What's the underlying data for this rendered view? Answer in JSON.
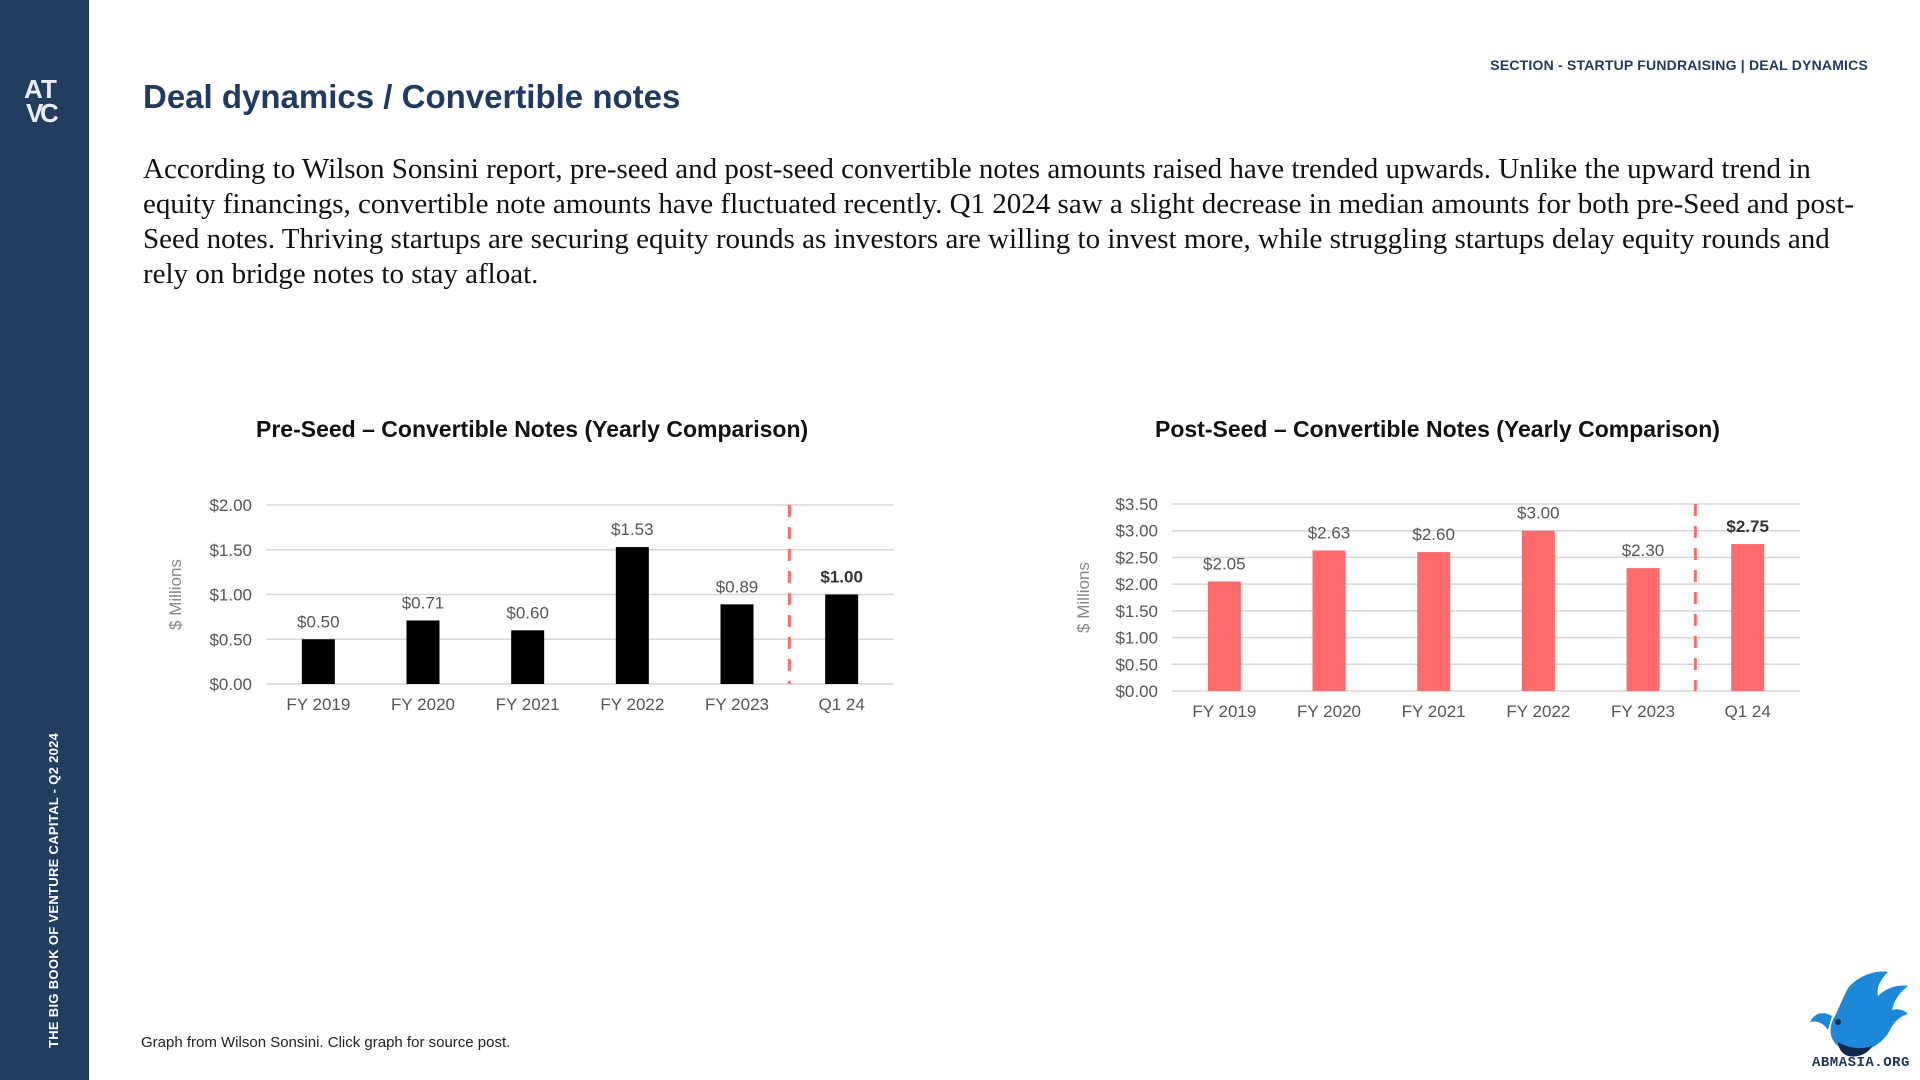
{
  "sidebar": {
    "logo_letters": [
      "A",
      "T",
      "V",
      "C"
    ],
    "vertical_text": "THE BIG BOOK OF VENTURE CAPITAL - Q2 2024"
  },
  "header": {
    "section_label": "SECTION - STARTUP FUNDRAISING | DEAL DYNAMICS",
    "title": "Deal dynamics / Convertible notes"
  },
  "intro": "According to Wilson Sonsini report, pre-seed and post-seed convertible notes amounts raised have trended upwards. Unlike the upward trend in equity financings, convertible note amounts have fluctuated recently. Q1 2024 saw a slight decrease in median amounts for both pre-Seed and post-Seed notes. Thriving startups are securing equity rounds as investors are willing to invest more, while struggling startups delay equity rounds and rely on bridge notes to stay afloat.",
  "footnote": "Graph from Wilson Sonsini. Click graph for source post.",
  "watermark": "ABMASIA.ORG",
  "colors": {
    "sidebar": "#233d60",
    "title": "#1f3b64",
    "preseed_bar": "#000000",
    "postseed_bar": "#ff6b6b",
    "divider": "#ff6b6b"
  },
  "chart_data": [
    {
      "type": "bar",
      "title": "Pre-Seed – Convertible Notes (Yearly Comparison)",
      "ylabel": "$ Millions",
      "categories": [
        "FY 2019",
        "FY  2020",
        "FY 2021",
        "FY 2022",
        "FY 2023",
        "Q1 24"
      ],
      "values": [
        0.5,
        0.71,
        0.6,
        1.53,
        0.89,
        1.0
      ],
      "value_labels": [
        "$0.50",
        "$0.71",
        "$0.60",
        "$1.53",
        "$0.89",
        "$1.00"
      ],
      "yticks": [
        "$0.00",
        "$0.50",
        "$1.00",
        "$1.50",
        "$2.00"
      ],
      "ylim": [
        0,
        2
      ],
      "bar_color": "#000000",
      "highlight_last": true,
      "grid": true
    },
    {
      "type": "bar",
      "title": "Post-Seed – Convertible Notes (Yearly Comparison)",
      "ylabel": "$ Millions",
      "categories": [
        "FY 2019",
        "FY  2020",
        "FY 2021",
        "FY 2022",
        "FY 2023",
        "Q1 24"
      ],
      "values": [
        2.05,
        2.63,
        2.6,
        3.0,
        2.3,
        2.75
      ],
      "value_labels": [
        "$2.05",
        "$2.63",
        "$2.60",
        "$3.00",
        "$2.30",
        "$2.75"
      ],
      "yticks": [
        "$0.00",
        "$0.50",
        "$1.00",
        "$1.50",
        "$2.00",
        "$2.50",
        "$3.00",
        "$3.50"
      ],
      "ylim": [
        0,
        3.5
      ],
      "bar_color": "#ff6b6b",
      "highlight_last": true,
      "grid": true
    }
  ]
}
